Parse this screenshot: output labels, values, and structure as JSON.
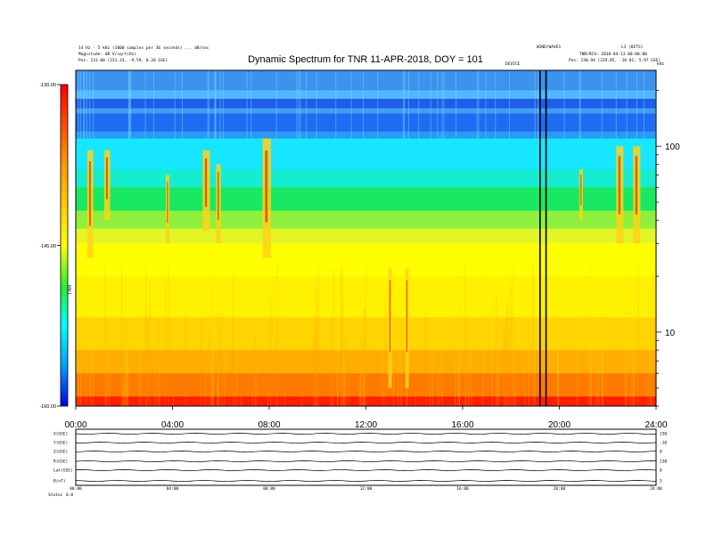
{
  "header": {
    "left_line1": "14 Hz - 5 kHz (1000 samples per 36 seconds) ... dB/sec",
    "left_line2": "Magnitude: dB V/sqrt(Hz)",
    "left_line3": "Pos: 231.00 (231.33, -9.59, 0.20 GSE)",
    "right_line1": "WIND/WAVES",
    "right_line1b": "L3 (BITS)",
    "right_line2": "TNR/RCV: 2018-04-13 00:00:00",
    "right_line3": "Pos: 230.94 (229.85, -18.81, 5.97 GSE)",
    "center_small": "DEVICE",
    "khz": "kHz",
    "ticks_label": "TNR"
  },
  "colors": {
    "background": "#ffffff",
    "frame": "#000000",
    "colorbar_top": "#ff0000",
    "colorbar_mid": "#ffff00",
    "colorbar_cyan": "#00ffff",
    "colorbar_bottom": "#0000ff"
  },
  "chart_data": [
    {
      "type": "heatmap",
      "title": "Dynamic Spectrum for TNR 11-APR-2018, DOY = 101",
      "xlabel": "",
      "ylabel": "",
      "x_ticks": [
        "00:00",
        "04:00",
        "08:00",
        "12:00",
        "16:00",
        "20:00",
        "24:00"
      ],
      "x_range_hours": [
        0,
        24
      ],
      "y_scale": "log",
      "y_range_khz": [
        4,
        256
      ],
      "y_ticks": [
        "100",
        "10"
      ],
      "y_tick_values": [
        100,
        10
      ],
      "colorbar": {
        "ticks": [
          "-130.00",
          "-145.00",
          "-160.00"
        ],
        "tick_values": [
          -130,
          -145,
          -160
        ],
        "range": [
          -160,
          -130
        ],
        "label": "TNR"
      },
      "bands": [
        {
          "from_khz": 256,
          "to_khz": 200,
          "color": "#3b93ee"
        },
        {
          "from_khz": 200,
          "to_khz": 180,
          "color": "#51b8ff"
        },
        {
          "from_khz": 180,
          "to_khz": 160,
          "color": "#1e5ee8"
        },
        {
          "from_khz": 160,
          "to_khz": 150,
          "color": "#3f9ef5"
        },
        {
          "from_khz": 150,
          "to_khz": 120,
          "color": "#1f6cf2"
        },
        {
          "from_khz": 120,
          "to_khz": 110,
          "color": "#2a9af6"
        },
        {
          "from_khz": 110,
          "to_khz": 75,
          "color": "#17e6ff"
        },
        {
          "from_khz": 75,
          "to_khz": 60,
          "color": "#16ecd0"
        },
        {
          "from_khz": 60,
          "to_khz": 45,
          "color": "#19e862"
        },
        {
          "from_khz": 45,
          "to_khz": 36,
          "color": "#8ef03d"
        },
        {
          "from_khz": 36,
          "to_khz": 30,
          "color": "#e4f527"
        },
        {
          "from_khz": 30,
          "to_khz": 20,
          "color": "#ffff00"
        },
        {
          "from_khz": 20,
          "to_khz": 12,
          "color": "#fff200"
        },
        {
          "from_khz": 12,
          "to_khz": 8,
          "color": "#ffd400"
        },
        {
          "from_khz": 8,
          "to_khz": 6,
          "color": "#ffae00"
        },
        {
          "from_khz": 6,
          "to_khz": 4.5,
          "color": "#ff7a00"
        },
        {
          "from_khz": 4.5,
          "to_khz": 4,
          "color": "#ff1e00"
        }
      ],
      "bursts": [
        {
          "hour": 0.6,
          "from_khz": 95,
          "to_khz": 25,
          "width": 0.25
        },
        {
          "hour": 1.3,
          "from_khz": 95,
          "to_khz": 40,
          "width": 0.25
        },
        {
          "hour": 3.8,
          "from_khz": 70,
          "to_khz": 30,
          "width": 0.15
        },
        {
          "hour": 5.4,
          "from_khz": 95,
          "to_khz": 35,
          "width": 0.3
        },
        {
          "hour": 5.9,
          "from_khz": 80,
          "to_khz": 30,
          "width": 0.2
        },
        {
          "hour": 7.9,
          "from_khz": 110,
          "to_khz": 25,
          "width": 0.35
        },
        {
          "hour": 13.0,
          "from_khz": 22,
          "to_khz": 5,
          "width": 0.15
        },
        {
          "hour": 13.7,
          "from_khz": 22,
          "to_khz": 5,
          "width": 0.15
        },
        {
          "hour": 20.9,
          "from_khz": 75,
          "to_khz": 40,
          "width": 0.15
        },
        {
          "hour": 22.5,
          "from_khz": 100,
          "to_khz": 30,
          "width": 0.3
        },
        {
          "hour": 23.2,
          "from_khz": 100,
          "to_khz": 30,
          "width": 0.3
        }
      ],
      "data_gap_lines_hours": [
        19.2,
        19.45
      ]
    },
    {
      "type": "line",
      "panel": "ephemeris",
      "rows": [
        {
          "left": "X(GSE)",
          "right": "230"
        },
        {
          "left": "Y(GSE)",
          "right": "-10"
        },
        {
          "left": "Z(GSE)",
          "right": "0"
        },
        {
          "left": "R(GSE)",
          "right": "230"
        },
        {
          "left": "Lat(GSE)",
          "right": "0"
        },
        {
          "left": "B(nT)",
          "right": "5"
        }
      ],
      "x_ticks": [
        "00:00",
        "04:00",
        "08:00",
        "12:00",
        "16:00",
        "20:00",
        "24:00"
      ],
      "footer_label": "Status",
      "footer_value": "0.0"
    }
  ]
}
